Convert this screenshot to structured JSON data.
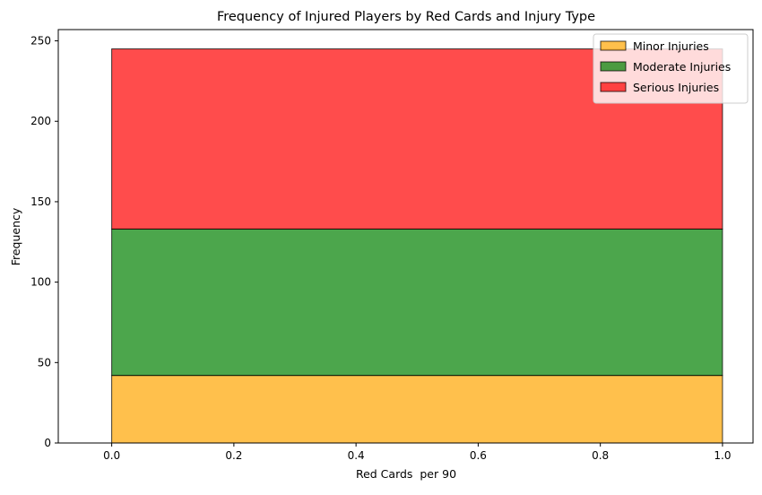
{
  "chart_data": {
    "type": "bar",
    "stacked": true,
    "title": "Frequency of Injured Players by Red Cards and Injury Type",
    "xlabel": "Red Cards  per 90",
    "ylabel": "Frequency",
    "xlim": [
      -0.0875,
      1.05
    ],
    "ylim": [
      0,
      257
    ],
    "xticks": [
      0.0,
      0.2,
      0.4,
      0.6,
      0.8,
      1.0
    ],
    "xtick_labels": [
      "0.0",
      "0.2",
      "0.4",
      "0.6",
      "0.8",
      "1.0"
    ],
    "yticks": [
      0,
      50,
      100,
      150,
      200,
      250
    ],
    "ytick_labels": [
      "0",
      "50",
      "100",
      "150",
      "200",
      "250"
    ],
    "bin": [
      0.0,
      1.0
    ],
    "grid": false,
    "legend_position": "top-right",
    "series": [
      {
        "name": "Minor Injuries",
        "value": 42,
        "color": "#FFA500"
      },
      {
        "name": "Moderate Injuries",
        "value": 91,
        "color": "#008000"
      },
      {
        "name": "Serious Injuries",
        "value": 112,
        "color": "#FF0000"
      }
    ]
  }
}
